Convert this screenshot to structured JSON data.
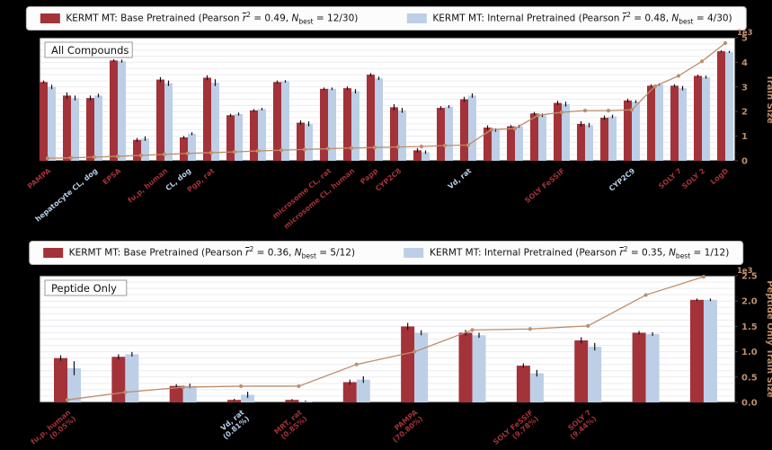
{
  "colors": {
    "background": "#000000",
    "base": "#A33239",
    "internal": "#BCCFE6",
    "line": "#BD8E6B",
    "plot_bg": "#FFFFFF",
    "grid": "#ECECF1",
    "error_bar": "#111111",
    "label_base": "#A33239",
    "label_internal": "#B9CEE8"
  },
  "legends": [
    {
      "items": [
        {
          "swatch": "base",
          "pre": "KERMT MT: Base Pretrained (Pearson ",
          "r": "r",
          "exp": "2",
          "mid": " = 0.49, ",
          "n": "N",
          "sub": "best",
          "post": " = 12/30)"
        },
        {
          "swatch": "internal",
          "pre": "KERMT MT: Internal Pretrained (Pearson ",
          "r": "r",
          "exp": "2",
          "mid": " = 0.48, ",
          "n": "N",
          "sub": "best",
          "post": " = 4/30)"
        }
      ]
    },
    {
      "items": [
        {
          "swatch": "base",
          "pre": "KERMT MT: Base Pretrained (Pearson ",
          "r": "r",
          "exp": "2",
          "mid": " = 0.36, ",
          "n": "N",
          "sub": "best",
          "post": " = 5/12)"
        },
        {
          "swatch": "internal",
          "pre": "KERMT MT: Internal Pretrained (Pearson ",
          "r": "r",
          "exp": "2",
          "mid": " = 0.35, ",
          "n": "N",
          "sub": "best",
          "post": " = 1/12)"
        }
      ]
    }
  ],
  "chart_data": [
    {
      "type": "bar",
      "panel_label": "All Compounds",
      "n_groups": 30,
      "ylim_left": [
        0,
        1.0
      ],
      "grid": true,
      "series": [
        {
          "name": "KERMT MT: Base Pretrained",
          "values": [
            0.64,
            0.53,
            0.51,
            0.815,
            0.17,
            0.66,
            0.19,
            0.675,
            0.37,
            0.41,
            0.64,
            0.31,
            0.585,
            0.59,
            0.7,
            0.435,
            0.085,
            0.43,
            0.5,
            0.27,
            0.28,
            0.385,
            0.47,
            0.3,
            0.35,
            0.49,
            0.61,
            0.61,
            0.69,
            0.89
          ],
          "err": [
            0.012,
            0.025,
            0.02,
            0.01,
            0.015,
            0.02,
            0.012,
            0.02,
            0.012,
            0.01,
            0.012,
            0.018,
            0.01,
            0.014,
            0.012,
            0.025,
            0.018,
            0.014,
            0.02,
            0.018,
            0.01,
            0.012,
            0.018,
            0.022,
            0.018,
            0.014,
            0.01,
            0.012,
            0.01,
            0.008
          ]
        },
        {
          "name": "KERMT MT: Internal Pretrained",
          "values": [
            0.6,
            0.51,
            0.53,
            0.81,
            0.18,
            0.63,
            0.22,
            0.635,
            0.38,
            0.42,
            0.645,
            0.3,
            0.585,
            0.565,
            0.67,
            0.41,
            0.07,
            0.44,
            0.53,
            0.25,
            0.28,
            0.37,
            0.46,
            0.29,
            0.36,
            0.48,
            0.62,
            0.59,
            0.68,
            0.885
          ],
          "err": [
            0.018,
            0.02,
            0.015,
            0.012,
            0.018,
            0.022,
            0.012,
            0.028,
            0.012,
            0.01,
            0.01,
            0.02,
            0.01,
            0.018,
            0.014,
            0.02,
            0.014,
            0.012,
            0.018,
            0.014,
            0.012,
            0.014,
            0.02,
            0.018,
            0.014,
            0.012,
            0.01,
            0.018,
            0.012,
            0.008
          ]
        }
      ],
      "line": {
        "name": "Train Size",
        "axis": "right",
        "values": [
          0.1,
          0.12,
          0.15,
          0.18,
          0.22,
          0.26,
          0.3,
          0.33,
          0.36,
          0.4,
          0.43,
          0.46,
          0.49,
          0.52,
          0.54,
          0.56,
          0.58,
          0.62,
          0.64,
          1.27,
          1.31,
          1.85,
          1.97,
          2.04,
          2.04,
          2.07,
          3.03,
          3.45,
          4.04,
          4.78
        ]
      },
      "right_axis": {
        "label": "Train Size",
        "ticks": [
          "0",
          "1",
          "2",
          "3",
          "4",
          "5"
        ],
        "tick_values": [
          0,
          1,
          2,
          3,
          4,
          5
        ],
        "lim": [
          0,
          5
        ],
        "exp": "1e3"
      },
      "tick_labels": [
        {
          "i": 0,
          "text": "PAMPA",
          "color": "base"
        },
        {
          "i": 2,
          "text": "hepatocyte CL, dog",
          "color": "internal"
        },
        {
          "i": 3,
          "text": "EPSA",
          "color": "base"
        },
        {
          "i": 5,
          "text": "fu,p, human",
          "color": "base"
        },
        {
          "i": 6,
          "text": "CL, dog",
          "color": "internal"
        },
        {
          "i": 7,
          "text": "Pgp, rat",
          "color": "base"
        },
        {
          "i": 12,
          "text": "microsome CL, rat",
          "color": "base"
        },
        {
          "i": 13,
          "text": "microsome CL, human",
          "color": "base"
        },
        {
          "i": 14,
          "text": "Papp",
          "color": "base"
        },
        {
          "i": 15,
          "text": "CYP2C8",
          "color": "base"
        },
        {
          "i": 18,
          "text": "Vd, rat",
          "color": "internal"
        },
        {
          "i": 22,
          "text": "SOLY FeSSIF",
          "color": "base"
        },
        {
          "i": 25,
          "text": "CYP2C9",
          "color": "internal"
        },
        {
          "i": 27,
          "text": "SOLY 7",
          "color": "base"
        },
        {
          "i": 28,
          "text": "SOLY 2",
          "color": "base"
        },
        {
          "i": 29,
          "text": "LogD",
          "color": "base"
        }
      ]
    },
    {
      "type": "bar",
      "panel_label": "Peptide Only",
      "n_groups": 12,
      "ylim_left": [
        0,
        1.0
      ],
      "grid": true,
      "series": [
        {
          "name": "KERMT MT: Base Pretrained",
          "values": [
            0.35,
            0.36,
            0.13,
            0.02,
            0.02,
            0.16,
            0.6,
            0.55,
            0.29,
            0.49,
            0.55,
            0.81
          ],
          "err": [
            0.022,
            0.02,
            0.014,
            0.008,
            0.006,
            0.02,
            0.028,
            0.022,
            0.018,
            0.024,
            0.014,
            0.01
          ]
        },
        {
          "name": "KERMT MT: Internal Pretrained",
          "values": [
            0.27,
            0.38,
            0.13,
            0.06,
            0.01,
            0.18,
            0.55,
            0.53,
            0.23,
            0.44,
            0.54,
            0.81
          ],
          "err": [
            0.055,
            0.018,
            0.018,
            0.024,
            0.005,
            0.026,
            0.02,
            0.02,
            0.026,
            0.03,
            0.014,
            0.01
          ]
        }
      ],
      "line": {
        "name": "Peptide Only Train Size",
        "axis": "right",
        "values": [
          0.05,
          0.2,
          0.3,
          0.32,
          0.32,
          0.75,
          1.0,
          1.43,
          1.45,
          1.51,
          2.12,
          2.48
        ]
      },
      "right_axis": {
        "label": "Peptide Only Train Size",
        "ticks": [
          "0.0",
          "0.5",
          "1.0",
          "1.5",
          "2.0",
          "2.5"
        ],
        "tick_values": [
          0,
          0.5,
          1,
          1.5,
          2,
          2.5
        ],
        "lim": [
          0,
          2.5
        ],
        "exp": "1e3"
      },
      "tick_labels": [
        {
          "i": 0,
          "text": "fu,p, human",
          "pct": "(0.05%)",
          "color": "base"
        },
        {
          "i": 3,
          "text": "Vd, rat",
          "pct": "(0.81%)",
          "color": "internal"
        },
        {
          "i": 4,
          "text": "MRT, rat",
          "pct": "(0.85%)",
          "color": "base"
        },
        {
          "i": 6,
          "text": "PAMPA",
          "pct": "(70.80%)",
          "color": "base"
        },
        {
          "i": 8,
          "text": "SOLY FeSSIF",
          "pct": "(9.78%)",
          "color": "base"
        },
        {
          "i": 9,
          "text": "SOLY 7",
          "pct": "(9.44%)",
          "color": "base"
        }
      ]
    }
  ]
}
